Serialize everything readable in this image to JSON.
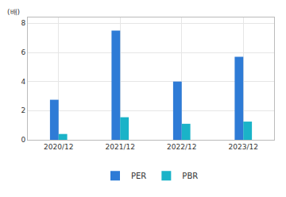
{
  "chart_data": {
    "type": "bar",
    "y_label": "(배)",
    "categories": [
      "2020/12",
      "2021/12",
      "2022/12",
      "2023/12"
    ],
    "series": [
      {
        "name": "PER",
        "color": "#2e7bd6",
        "values": [
          2.75,
          7.5,
          4.0,
          5.7
        ]
      },
      {
        "name": "PBR",
        "color": "#1ab3c8",
        "values": [
          0.4,
          1.55,
          1.1,
          1.25
        ]
      }
    ],
    "ylim": [
      0,
      8.4
    ],
    "yticks": [
      0,
      2,
      4,
      6,
      8
    ],
    "grid": true,
    "legend": "bottom"
  }
}
